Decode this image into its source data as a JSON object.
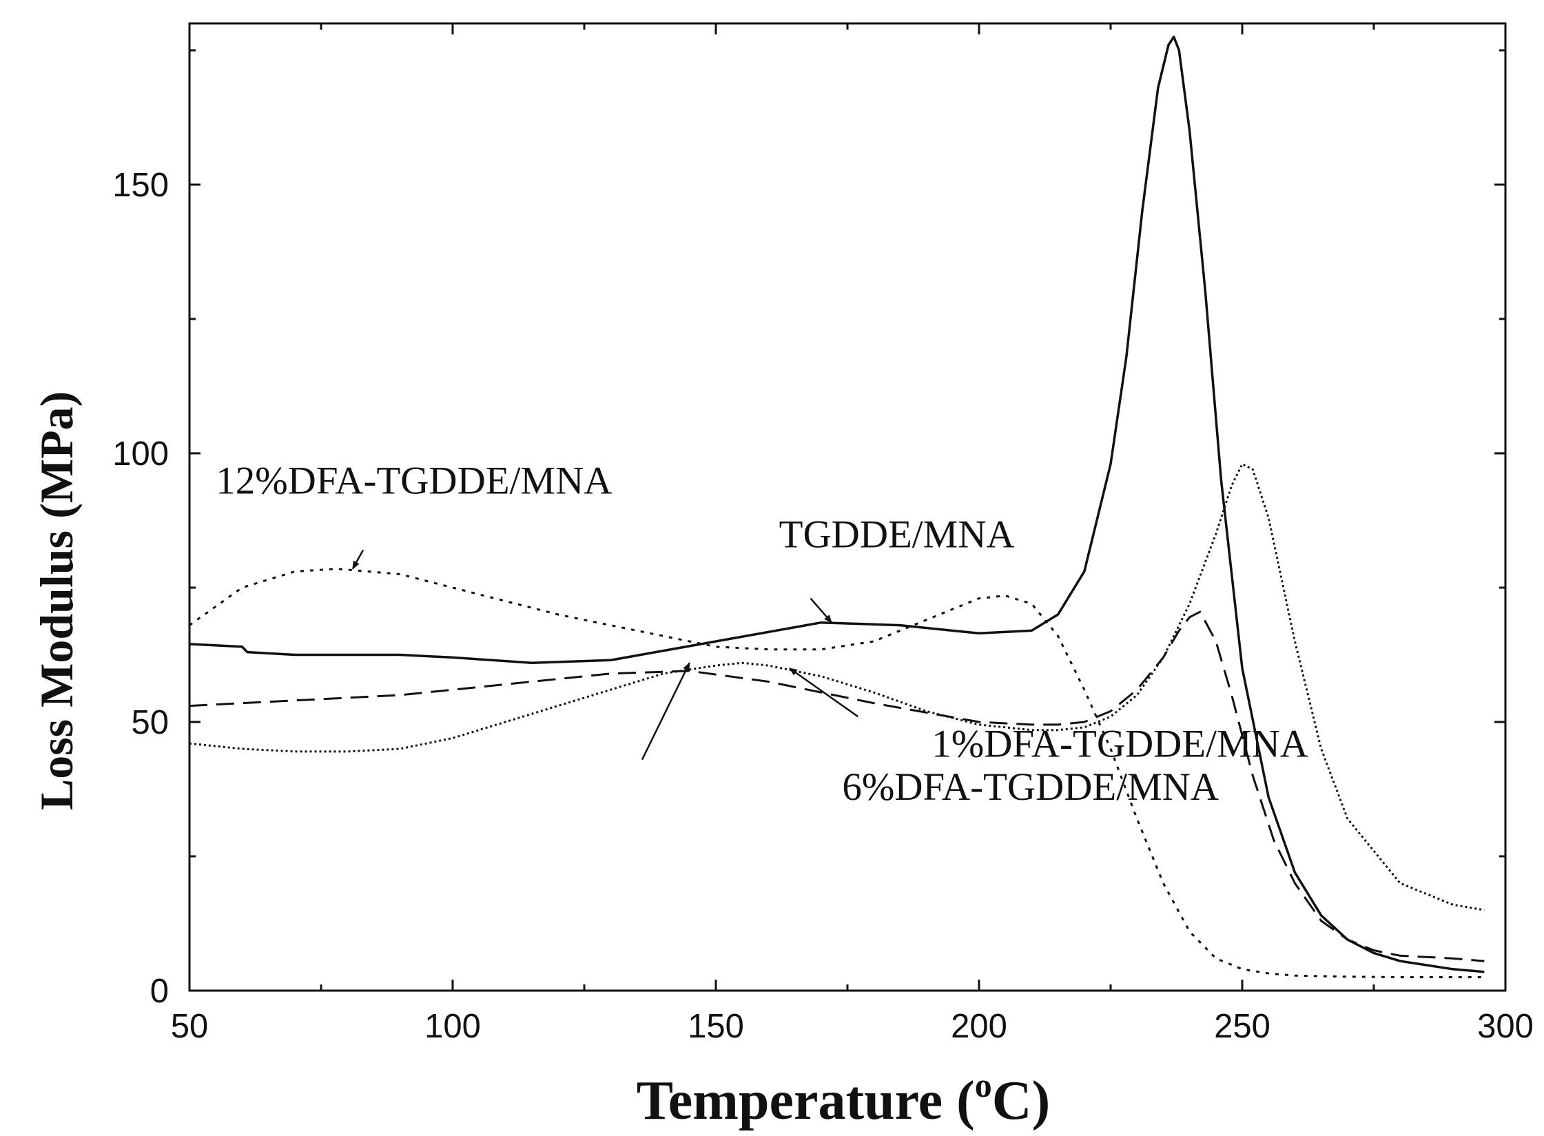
{
  "chart_data": {
    "type": "line",
    "title": "",
    "xlabel": "Temperature (",
    "xlabel_sup": "o",
    "xlabel_unit": "C)",
    "ylabel": "Loss Modulus (MPa)",
    "xlim": [
      50,
      300
    ],
    "ylim": [
      0,
      180
    ],
    "x_ticks": [
      50,
      100,
      150,
      200,
      250,
      300
    ],
    "x_tick_labels": [
      "50",
      "100",
      "150",
      "200",
      "250",
      "300"
    ],
    "x_minor_step": 25,
    "y_ticks": [
      0,
      50,
      100,
      150
    ],
    "y_tick_labels": [
      "0",
      "50",
      "100",
      "150"
    ],
    "y_minor_step": 25,
    "grid": false,
    "series": [
      {
        "name": "TGDDE/MNA",
        "style": "solid",
        "x": [
          50,
          60,
          61,
          70,
          90,
          100,
          115,
          130,
          150,
          170,
          185,
          200,
          210,
          215,
          220,
          225,
          228,
          231,
          234,
          236,
          237,
          238,
          240,
          243,
          246,
          250,
          255,
          260,
          265,
          270,
          275,
          280,
          290,
          296
        ],
        "values": [
          64.5,
          64,
          63,
          62.5,
          62.5,
          62,
          61,
          61.5,
          65,
          68.5,
          68,
          66.5,
          67,
          70,
          78,
          98,
          118,
          145,
          168,
          176,
          177.5,
          175,
          160,
          130,
          95,
          60,
          36,
          22,
          14,
          9.5,
          7,
          5.5,
          4,
          3.5
        ]
      },
      {
        "name": "12%DFA-TGDDE/MNA",
        "style": "dotted",
        "x": [
          50,
          60,
          70,
          78,
          90,
          100,
          120,
          140,
          150,
          160,
          170,
          180,
          190,
          200,
          205,
          210,
          215,
          220,
          225,
          230,
          235,
          240,
          245,
          250,
          255,
          260,
          270,
          280,
          290,
          296
        ],
        "values": [
          68,
          75,
          78,
          78.5,
          77.5,
          75,
          70,
          66,
          64,
          63.5,
          63.5,
          65,
          69,
          73,
          73.5,
          72,
          66,
          56,
          45,
          32,
          20,
          11,
          6,
          4,
          3.2,
          2.8,
          2.6,
          2.5,
          2.5,
          2.5
        ]
      },
      {
        "name": "1%DFA-TGDDE/MNA",
        "style": "dashed",
        "x": [
          50,
          70,
          90,
          110,
          130,
          145,
          160,
          180,
          200,
          210,
          215,
          220,
          225,
          230,
          235,
          238,
          240,
          242,
          245,
          248,
          252,
          256,
          260,
          265,
          270,
          275,
          280,
          290,
          296
        ],
        "values": [
          53,
          54,
          55,
          57,
          59,
          59.5,
          57.5,
          53.5,
          50,
          49.5,
          49.5,
          50,
          52,
          56,
          62,
          67,
          69.5,
          70.5,
          65,
          55,
          40,
          28,
          20,
          13,
          9.5,
          7.5,
          6.5,
          6,
          5.5
        ]
      },
      {
        "name": "6%DFA-TGDDE/MNA",
        "style": "fine-dotted",
        "x": [
          50,
          60,
          70,
          80,
          90,
          100,
          110,
          120,
          130,
          140,
          150,
          155,
          160,
          170,
          180,
          190,
          200,
          210,
          215,
          220,
          225,
          230,
          235,
          240,
          245,
          248,
          250,
          252,
          255,
          260,
          265,
          270,
          280,
          290,
          296
        ],
        "values": [
          46,
          45,
          44.5,
          44.5,
          45,
          47,
          50,
          53,
          56,
          59,
          60.5,
          61,
          60.5,
          58.5,
          55.5,
          52,
          49.5,
          48.5,
          48.5,
          49,
          51,
          55,
          62,
          72,
          85,
          94,
          98,
          97,
          88,
          65,
          45,
          32,
          20,
          16,
          15
        ]
      }
    ],
    "annotations": [
      {
        "text": "12%DFA-TGDDE/MNA",
        "series": "12%DFA-TGDDE/MNA",
        "label_at": [
          55,
          92.5
        ],
        "arrow_from": [
          83,
          82
        ],
        "arrow_to": [
          81,
          78.5
        ]
      },
      {
        "text": "TGDDE/MNA",
        "series": "TGDDE/MNA",
        "label_at": [
          162,
          82.5
        ],
        "arrow_from": [
          168,
          73
        ],
        "arrow_to": [
          172,
          68.5
        ]
      },
      {
        "text": "1%DFA-TGDDE/MNA",
        "series": "1%DFA-TGDDE/MNA",
        "label_at": [
          191,
          43.5
        ],
        "arrow_from": [
          177,
          51
        ],
        "arrow_to": [
          164,
          60
        ]
      },
      {
        "text": "6%DFA-TGDDE/MNA",
        "series": "6%DFA-TGDDE/MNA",
        "label_at": [
          174,
          35.5
        ],
        "arrow_from": [
          136,
          43
        ],
        "arrow_to": [
          145,
          61
        ]
      }
    ]
  }
}
